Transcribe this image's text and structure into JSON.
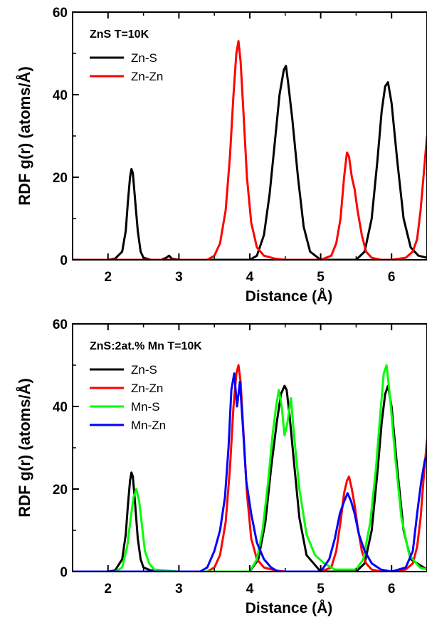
{
  "chart_data": [
    {
      "type": "line",
      "title": "",
      "legend_title": "ZnS T=10K",
      "xlabel": "Distance (Å)",
      "ylabel": "RDF g(r) (atoms/Å)",
      "xlim": [
        1.5,
        6.5
      ],
      "ylim": [
        0,
        60
      ],
      "xticks": [
        2,
        3,
        4,
        5,
        6
      ],
      "yticks": [
        0,
        20,
        40,
        60
      ],
      "grid": false,
      "legend_position": "top-left",
      "series": [
        {
          "name": "Zn-S",
          "color": "#000000",
          "x": [
            1.5,
            1.8,
            2.0,
            2.1,
            2.2,
            2.25,
            2.28,
            2.31,
            2.33,
            2.35,
            2.38,
            2.42,
            2.46,
            2.5,
            2.6,
            2.75,
            2.82,
            2.86,
            2.9,
            3.0,
            4.0,
            4.1,
            4.2,
            4.28,
            4.35,
            4.42,
            4.48,
            4.51,
            4.54,
            4.6,
            4.68,
            4.76,
            4.85,
            5.0,
            5.5,
            5.62,
            5.72,
            5.8,
            5.86,
            5.91,
            5.95,
            6.0,
            6.08,
            6.17,
            6.27,
            6.38,
            6.5
          ],
          "y": [
            0,
            0,
            0,
            0.3,
            2,
            7,
            14,
            20,
            22,
            21,
            15,
            7,
            2,
            0.5,
            0,
            0,
            0.5,
            1,
            0.3,
            0,
            0,
            1,
            6,
            16,
            28,
            40,
            46,
            47,
            43,
            34,
            20,
            8,
            2,
            0,
            0,
            2,
            10,
            24,
            36,
            42,
            43,
            38,
            24,
            10,
            3,
            1,
            0.5
          ]
        },
        {
          "name": "Zn-Zn",
          "color": "#ff0000",
          "x": [
            1.5,
            3.0,
            3.4,
            3.5,
            3.58,
            3.66,
            3.72,
            3.77,
            3.81,
            3.84,
            3.87,
            3.91,
            3.96,
            4.02,
            4.1,
            4.2,
            4.35,
            4.5,
            5.0,
            5.15,
            5.22,
            5.28,
            5.33,
            5.37,
            5.4,
            5.44,
            5.48,
            5.52,
            5.58,
            5.64,
            5.72,
            5.85,
            6.0,
            6.2,
            6.3,
            6.36,
            6.41,
            6.45,
            6.5
          ],
          "y": [
            0,
            0,
            0,
            1,
            4,
            12,
            25,
            40,
            50,
            53,
            48,
            36,
            20,
            9,
            3,
            1,
            0.3,
            0,
            0,
            1,
            4,
            10,
            20,
            26,
            25,
            20,
            17,
            12,
            6,
            2,
            0.5,
            0,
            0,
            0.5,
            2,
            5,
            12,
            20,
            30
          ]
        }
      ]
    },
    {
      "type": "line",
      "title": "",
      "legend_title": "ZnS:2at.% Mn T=10K",
      "xlabel": "Distance (Å)",
      "ylabel": "RDF g(r) (atoms/Å)",
      "xlim": [
        1.5,
        6.5
      ],
      "ylim": [
        0,
        60
      ],
      "xticks": [
        2,
        3,
        4,
        5,
        6
      ],
      "yticks": [
        0,
        20,
        40,
        60
      ],
      "grid": false,
      "legend_position": "top-left",
      "series": [
        {
          "name": "Zn-S",
          "color": "#000000",
          "x": [
            1.5,
            2.0,
            2.1,
            2.2,
            2.25,
            2.28,
            2.31,
            2.33,
            2.35,
            2.38,
            2.42,
            2.46,
            2.5,
            2.6,
            2.8,
            3.0,
            4.0,
            4.12,
            4.22,
            4.3,
            4.38,
            4.44,
            4.49,
            4.52,
            4.56,
            4.62,
            4.7,
            4.8,
            4.95,
            5.0,
            5.5,
            5.62,
            5.72,
            5.8,
            5.86,
            5.91,
            5.95,
            6.0,
            6.08,
            6.17,
            6.27,
            6.5
          ],
          "y": [
            0,
            0,
            0.3,
            3,
            9,
            16,
            22,
            24,
            23,
            17,
            8,
            3,
            1,
            0.3,
            0,
            0,
            0,
            3,
            12,
            25,
            36,
            43,
            45,
            44,
            38,
            27,
            13,
            4,
            1,
            0,
            0,
            2,
            10,
            24,
            36,
            43,
            45,
            40,
            25,
            10,
            3,
            0.5
          ]
        },
        {
          "name": "Zn-Zn",
          "color": "#ff0000",
          "x": [
            1.5,
            3.0,
            3.4,
            3.5,
            3.58,
            3.66,
            3.72,
            3.77,
            3.81,
            3.84,
            3.87,
            3.91,
            3.96,
            4.02,
            4.1,
            4.2,
            4.35,
            4.5,
            5.0,
            5.15,
            5.22,
            5.28,
            5.33,
            5.37,
            5.4,
            5.44,
            5.48,
            5.52,
            5.58,
            5.64,
            5.72,
            5.85,
            6.0,
            6.2,
            6.3,
            6.36,
            6.41,
            6.45,
            6.5
          ],
          "y": [
            0,
            0,
            0,
            1,
            4,
            12,
            25,
            40,
            48,
            50,
            46,
            34,
            19,
            8,
            3,
            1,
            0.3,
            0,
            0,
            1,
            5,
            12,
            19,
            22,
            23,
            20,
            16,
            11,
            5,
            2,
            0.5,
            0,
            0,
            0.5,
            2,
            6,
            13,
            22,
            32
          ]
        },
        {
          "name": "Mn-S",
          "color": "#00ff00",
          "x": [
            1.5,
            2.1,
            2.2,
            2.27,
            2.32,
            2.36,
            2.4,
            2.44,
            2.48,
            2.52,
            2.58,
            2.65,
            3.0,
            4.0,
            4.1,
            4.18,
            4.26,
            4.32,
            4.37,
            4.41,
            4.45,
            4.49,
            4.53,
            4.58,
            4.63,
            4.7,
            4.8,
            4.92,
            5.05,
            5.2,
            5.5,
            5.6,
            5.7,
            5.78,
            5.84,
            5.89,
            5.93,
            5.98,
            6.05,
            6.14,
            6.25,
            6.4,
            6.5
          ],
          "y": [
            0,
            0,
            1,
            6,
            13,
            18,
            20,
            17,
            11,
            5,
            2,
            0.5,
            0,
            0,
            3,
            10,
            22,
            33,
            40,
            44,
            40,
            33,
            36,
            42,
            32,
            20,
            9,
            4,
            2,
            0.5,
            0.5,
            3,
            12,
            25,
            38,
            48,
            50,
            42,
            28,
            13,
            4,
            1,
            0.5
          ]
        },
        {
          "name": "Mn-Zn",
          "color": "#0000ff",
          "x": [
            1.5,
            3.3,
            3.4,
            3.5,
            3.58,
            3.65,
            3.7,
            3.74,
            3.78,
            3.82,
            3.86,
            3.9,
            3.95,
            4.02,
            4.1,
            4.2,
            4.3,
            4.4,
            5.0,
            5.12,
            5.2,
            5.27,
            5.33,
            5.38,
            5.43,
            5.48,
            5.54,
            5.62,
            5.72,
            5.85,
            6.0,
            6.2,
            6.3,
            6.36,
            6.42,
            6.47,
            6.5
          ],
          "y": [
            0,
            0,
            1,
            5,
            10,
            18,
            30,
            44,
            48,
            40,
            46,
            36,
            22,
            14,
            7,
            3,
            1,
            0,
            0,
            3,
            8,
            14,
            17,
            19,
            17,
            14,
            9,
            5,
            2,
            0.5,
            0,
            1,
            5,
            14,
            22,
            27,
            28
          ]
        }
      ]
    }
  ]
}
